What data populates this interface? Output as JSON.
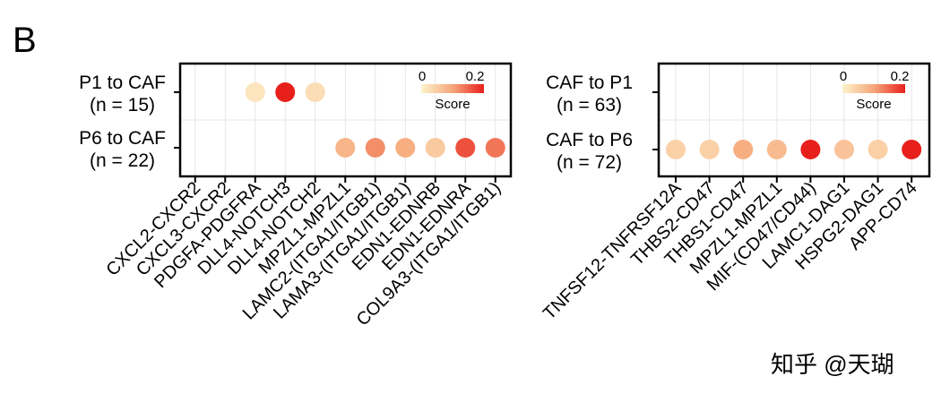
{
  "panel_label": "B",
  "watermark": "知乎 @天瑚",
  "colors": {
    "score_low": "#fdf2cc",
    "score_mid": "#f6a77a",
    "score_high": "#e8201c",
    "grid": "#e6e6e6"
  },
  "chart_data": [
    {
      "type": "scatter",
      "title": "",
      "xlabel": "",
      "ylabel": "",
      "rows": [
        {
          "line1": "P1 to CAF",
          "line2": "(n = 15)"
        },
        {
          "line1": "P6 to CAF",
          "line2": "(n = 22)"
        }
      ],
      "categories": [
        "CXCL2-CXCR2",
        "CXCL3-CXCR2",
        "PDGFA-PDGFRA",
        "DLL4-NOTCH3",
        "DLL4-NOTCH2",
        "MPZL1-MPZL1",
        "LAMC2-(ITGA1/ITGB1)",
        "LAMA3-(ITGA1/ITGB1)",
        "EDN1-EDNRB",
        "EDN1-EDNRA",
        "COL9A3-(ITGA1/ITGB1)"
      ],
      "points": [
        {
          "row": 0,
          "col": 2,
          "score": 0.02
        },
        {
          "row": 0,
          "col": 3,
          "score": 0.22
        },
        {
          "row": 0,
          "col": 4,
          "score": 0.03
        },
        {
          "row": 1,
          "col": 5,
          "score": 0.09
        },
        {
          "row": 1,
          "col": 6,
          "score": 0.13
        },
        {
          "row": 1,
          "col": 7,
          "score": 0.1
        },
        {
          "row": 1,
          "col": 8,
          "score": 0.06
        },
        {
          "row": 1,
          "col": 9,
          "score": 0.18
        },
        {
          "row": 1,
          "col": 10,
          "score": 0.15
        }
      ],
      "legend": {
        "title": "Score",
        "ticks": [
          "0",
          "0.2"
        ],
        "range": [
          0,
          0.22
        ],
        "placement": "top-right"
      },
      "grid": true
    },
    {
      "type": "scatter",
      "title": "",
      "xlabel": "",
      "ylabel": "",
      "rows": [
        {
          "line1": "CAF to P1",
          "line2": "(n = 63)"
        },
        {
          "line1": "CAF to P6",
          "line2": "(n = 72)"
        }
      ],
      "categories": [
        "TNFSF12-TNFRSF12A",
        "THBS2-CD47",
        "THBS1-CD47",
        "MPZL1-MPZL1",
        "MIF-(CD47/CD44)",
        "LAMC1-DAG1",
        "HSPG2-DAG1",
        "APP-CD74"
      ],
      "points": [
        {
          "row": 1,
          "col": 0,
          "score": 0.05
        },
        {
          "row": 1,
          "col": 1,
          "score": 0.05
        },
        {
          "row": 1,
          "col": 2,
          "score": 0.1
        },
        {
          "row": 1,
          "col": 3,
          "score": 0.08
        },
        {
          "row": 1,
          "col": 4,
          "score": 0.22
        },
        {
          "row": 1,
          "col": 5,
          "score": 0.07
        },
        {
          "row": 1,
          "col": 6,
          "score": 0.05
        },
        {
          "row": 1,
          "col": 7,
          "score": 0.22
        }
      ],
      "legend": {
        "title": "Score",
        "ticks": [
          "0",
          "0.2"
        ],
        "range": [
          0,
          0.22
        ],
        "placement": "top-right"
      },
      "grid": true
    }
  ]
}
